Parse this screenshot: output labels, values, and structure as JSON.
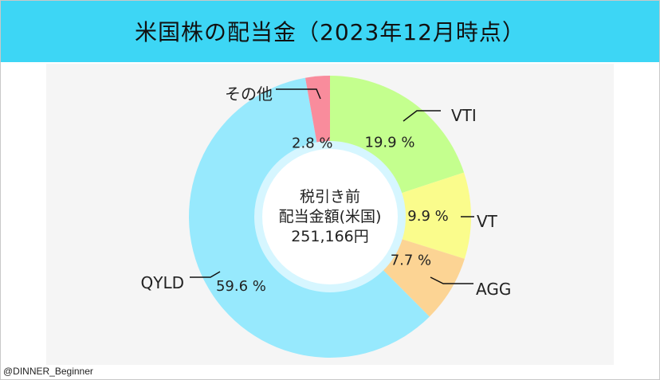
{
  "header": {
    "title": "米国株の配当金（2023年12月時点）"
  },
  "credit": "@DINNER_Beginner",
  "chart_data": {
    "type": "pie",
    "title": "米国株の配当金（2023年12月時点）",
    "donut": true,
    "center_label": [
      "税引き前",
      "配当金額(米国)",
      "251,166円"
    ],
    "unit": "%",
    "slices": [
      {
        "name": "VTI",
        "value": 19.9,
        "label": "19.9 %",
        "color": "#c4ff8e"
      },
      {
        "name": "VT",
        "value": 9.9,
        "label": "9.9 %",
        "color": "#fafc8c"
      },
      {
        "name": "AGG",
        "value": 7.7,
        "label": "7.7 %",
        "color": "#fcd494"
      },
      {
        "name": "QYLD",
        "value": 59.6,
        "label": "59.6 %",
        "color": "#97e9fd"
      },
      {
        "name": "その他",
        "value": 2.8,
        "label": "2.8 %",
        "color": "#f98c9c"
      }
    ]
  }
}
